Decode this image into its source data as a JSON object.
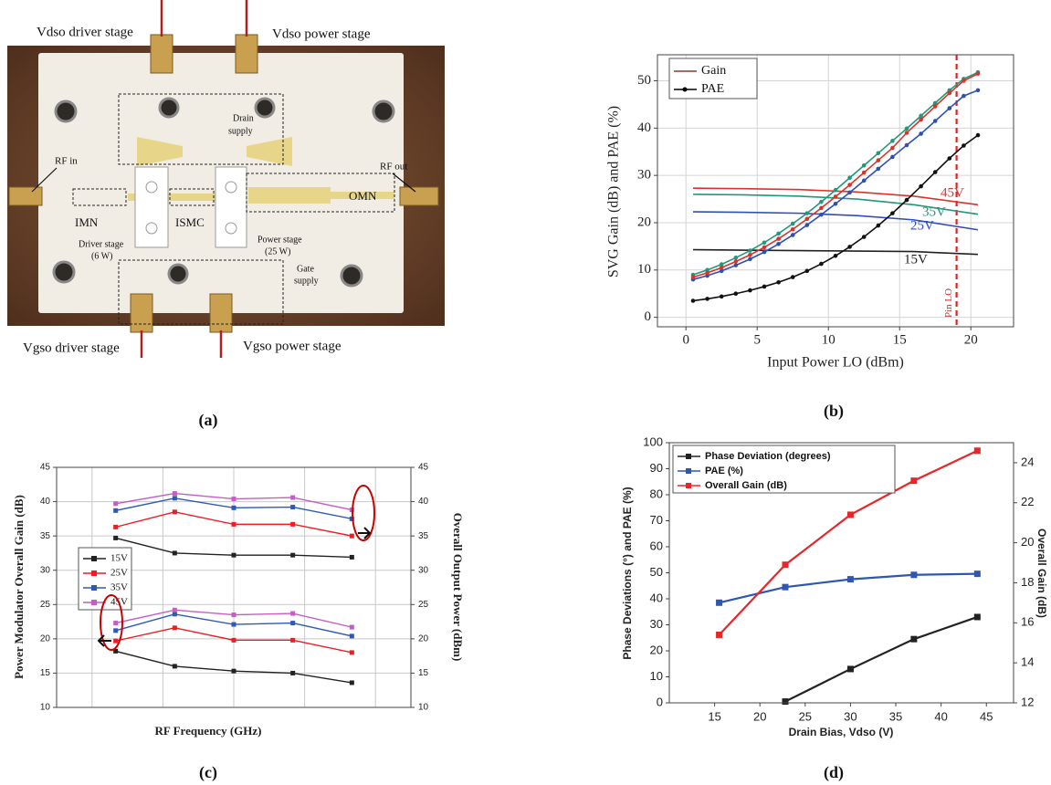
{
  "photo": {
    "labels": [
      "Vdso driver stage",
      "Vdso power stage",
      "Vgso driver stage",
      "Vgso power stage",
      "RF in",
      "RF out",
      "Drain",
      "supply",
      "IMN",
      "ISMC",
      "OMN",
      "Driver stage",
      "(6 W)",
      "Power stage",
      "(25 W)",
      "Gate",
      "supply"
    ]
  },
  "captions": [
    "(a)",
    "(b)",
    "(c)",
    "(d)"
  ],
  "chart_data": [
    {
      "type": "line",
      "xlabel": "Input Power LO (dBm)",
      "ylabel": "SVG Gain (dB) and PAE (%)",
      "xlim": [
        -2,
        23
      ],
      "xticks": [
        0,
        5,
        10,
        15,
        20
      ],
      "ylim": [
        -2,
        55.5
      ],
      "yticks": [
        0,
        10,
        20,
        30,
        40,
        50
      ],
      "grid": true,
      "legend": [
        {
          "label": "Gain",
          "color": "#8b3a2a"
        },
        {
          "label": "PAE",
          "color": "#000000",
          "marker": "circle"
        }
      ],
      "vline": {
        "x": 19,
        "label": "Pin LO",
        "color": "#d62728"
      },
      "series": [
        {
          "name": "45V",
          "color": "#d9342b",
          "x": [
            0.5,
            4,
            8,
            12,
            16,
            20.5
          ],
          "values": [
            27.3,
            27.2,
            27.0,
            26.5,
            25.6,
            23.8
          ]
        },
        {
          "name": "35V",
          "color": "#23977a",
          "x": [
            0.5,
            4,
            8,
            12,
            16,
            20.5
          ],
          "values": [
            26.0,
            25.9,
            25.6,
            25.0,
            23.8,
            21.8
          ]
        },
        {
          "name": "25V",
          "color": "#2f4fb5",
          "x": [
            0.5,
            4,
            8,
            12,
            16,
            20.5
          ],
          "values": [
            22.3,
            22.2,
            22.0,
            21.5,
            20.6,
            18.5
          ]
        },
        {
          "name": "15V",
          "color": "#222222",
          "x": [
            0.5,
            4,
            8,
            12,
            16,
            20.5
          ],
          "values": [
            14.3,
            14.2,
            14.1,
            14.0,
            13.9,
            13.3
          ]
        },
        {
          "color": "#111111",
          "marker": "circle",
          "x": [
            0.5,
            1.5,
            2.5,
            3.5,
            4.5,
            5.5,
            6.5,
            7.5,
            8.5,
            9.5,
            10.5,
            11.5,
            12.5,
            13.5,
            14.5,
            15.5,
            16.5,
            17.5,
            18.5,
            19.5,
            20.5
          ],
          "values": [
            3.5,
            3.9,
            4.4,
            5.0,
            5.7,
            6.5,
            7.4,
            8.5,
            9.8,
            11.3,
            13.0,
            14.9,
            17.0,
            19.4,
            22.0,
            24.8,
            27.7,
            30.7,
            33.6,
            36.3,
            38.5
          ]
        },
        {
          "color": "#2f4fb5",
          "marker": "circle",
          "x": [
            0.5,
            1.5,
            2.5,
            3.5,
            4.5,
            5.5,
            6.5,
            7.5,
            8.5,
            9.5,
            10.5,
            11.5,
            12.5,
            13.5,
            14.5,
            15.5,
            16.5,
            17.5,
            18.5,
            19.5,
            20.5
          ],
          "values": [
            8.0,
            8.8,
            9.8,
            11.0,
            12.3,
            13.8,
            15.5,
            17.4,
            19.5,
            21.7,
            24.0,
            26.4,
            28.9,
            31.4,
            33.9,
            36.4,
            38.8,
            41.5,
            44.2,
            46.8,
            48.0
          ]
        },
        {
          "color": "#23977a",
          "marker": "circle",
          "x": [
            0.5,
            1.5,
            2.5,
            3.5,
            4.5,
            5.5,
            6.5,
            7.5,
            8.5,
            9.5,
            10.5,
            11.5,
            12.5,
            13.5,
            14.5,
            15.5,
            16.5,
            17.5,
            18.5,
            19.5,
            20.5
          ],
          "values": [
            9.0,
            10.0,
            11.2,
            12.6,
            14.1,
            15.8,
            17.7,
            19.8,
            22.0,
            24.4,
            26.9,
            29.5,
            32.1,
            34.7,
            37.3,
            39.9,
            42.6,
            45.3,
            48.0,
            50.4,
            51.8
          ]
        },
        {
          "color": "#d9342b",
          "marker": "circle",
          "x": [
            0.5,
            1.5,
            2.5,
            3.5,
            4.5,
            5.5,
            6.5,
            7.5,
            8.5,
            9.5,
            10.5,
            11.5,
            12.5,
            13.5,
            14.5,
            15.5,
            16.5,
            17.5,
            18.5,
            19.5,
            20.5
          ],
          "values": [
            8.5,
            9.4,
            10.5,
            11.8,
            13.2,
            14.8,
            16.6,
            18.6,
            20.8,
            23.1,
            25.5,
            28.0,
            30.6,
            33.2,
            35.8,
            39.0,
            41.8,
            44.6,
            47.4,
            50.0,
            51.5
          ]
        }
      ]
    },
    {
      "type": "line",
      "xlabel": "RF Frequency (GHz)",
      "ylabel": "Power Modulator Overall Gain (dB)",
      "y2label": "Overall Output Power (dBm)",
      "x": [
        1,
        2,
        3,
        4,
        5
      ],
      "xlim": [
        0,
        6
      ],
      "ylim": [
        10,
        45
      ],
      "yticks": [
        10,
        15,
        20,
        25,
        30,
        35,
        40,
        45
      ],
      "y2lim": [
        10,
        45
      ],
      "y2ticks": [
        10,
        15,
        20,
        25,
        30,
        35,
        40,
        45
      ],
      "grid": true,
      "marker": "square",
      "series": [
        {
          "name": "15V",
          "color": "#222222",
          "values": [
            18.2,
            16.0,
            15.3,
            15.0,
            13.6
          ]
        },
        {
          "name": "25V",
          "color": "#ee1c24",
          "values": [
            19.7,
            21.6,
            19.8,
            19.8,
            18.0
          ]
        },
        {
          "name": "35V",
          "color": "#2e59b7",
          "values": [
            21.2,
            23.6,
            22.1,
            22.3,
            20.4
          ]
        },
        {
          "name": "45V",
          "color": "#c45ec4",
          "values": [
            22.3,
            24.2,
            23.5,
            23.7,
            21.7
          ]
        },
        {
          "color": "#222222",
          "axis": "y2",
          "values": [
            34.7,
            32.5,
            32.2,
            32.2,
            31.9
          ]
        },
        {
          "color": "#ee1c24",
          "axis": "y2",
          "values": [
            36.3,
            38.5,
            36.7,
            36.7,
            35.0
          ]
        },
        {
          "color": "#2e59b7",
          "axis": "y2",
          "values": [
            38.7,
            40.5,
            39.1,
            39.2,
            37.5
          ]
        },
        {
          "color": "#c45ec4",
          "axis": "y2",
          "values": [
            39.7,
            41.2,
            40.4,
            40.6,
            38.8
          ]
        }
      ]
    },
    {
      "type": "line",
      "xlabel": "Drain Bias, Vdso (V)",
      "ylabel": "Phase Deviations (°) and PAE (%)",
      "y2label": "Overall Gain (dB)",
      "xlim": [
        10,
        48
      ],
      "xticks": [
        15,
        20,
        25,
        30,
        35,
        40,
        45
      ],
      "ylim": [
        0,
        100
      ],
      "yticks": [
        0,
        10,
        20,
        30,
        40,
        50,
        60,
        70,
        80,
        90,
        100
      ],
      "y2lim": [
        12,
        25
      ],
      "y2ticks": [
        12,
        14,
        16,
        18,
        20,
        22,
        24
      ],
      "grid": false,
      "marker": "square",
      "series": [
        {
          "name": "Phase Deviation (degrees)",
          "color": "#222222",
          "x": [
            22.8,
            30,
            37,
            44
          ],
          "values": [
            0.5,
            13,
            24.5,
            33
          ]
        },
        {
          "name": "PAE (%)",
          "color": "#2f56b0",
          "x": [
            15.5,
            22.8,
            30,
            37,
            44
          ],
          "values": [
            38.5,
            44.5,
            47.5,
            49.2,
            49.6
          ]
        },
        {
          "name": "Overall Gain (dB)",
          "color": "#e8262a",
          "axis": "y2",
          "x": [
            15.5,
            22.8,
            30,
            37,
            44
          ],
          "values": [
            15.4,
            18.9,
            21.4,
            23.1,
            24.6
          ]
        }
      ]
    }
  ]
}
